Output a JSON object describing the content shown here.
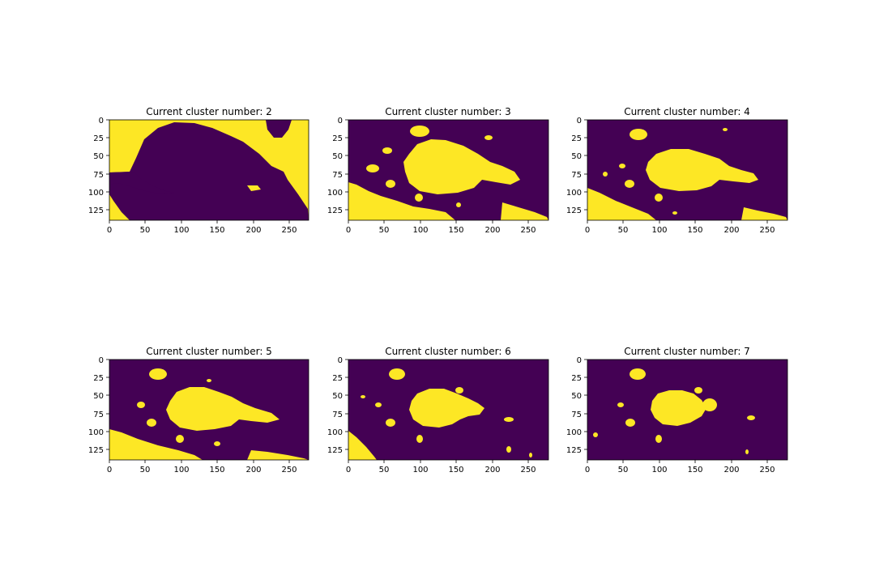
{
  "colors": {
    "background": "#440154",
    "foreground": "#fde725",
    "axis": "#000000"
  },
  "chart_data": [
    {
      "type": "heatmap",
      "title": "Current cluster number: 2",
      "xlim": [
        0,
        278
      ],
      "ylim": [
        139,
        0
      ],
      "xticks": [
        "0",
        "50",
        "100",
        "150",
        "200",
        "250"
      ],
      "yticks": [
        "0",
        "25",
        "50",
        "75",
        "100",
        "125"
      ],
      "grid": false
    },
    {
      "type": "heatmap",
      "title": "Current cluster number: 3",
      "xlim": [
        0,
        278
      ],
      "ylim": [
        139,
        0
      ],
      "xticks": [
        "0",
        "50",
        "100",
        "150",
        "200",
        "250"
      ],
      "yticks": [
        "0",
        "25",
        "50",
        "75",
        "100",
        "125"
      ],
      "grid": false
    },
    {
      "type": "heatmap",
      "title": "Current cluster number: 4",
      "xlim": [
        0,
        278
      ],
      "ylim": [
        139,
        0
      ],
      "xticks": [
        "0",
        "50",
        "100",
        "150",
        "200",
        "250"
      ],
      "yticks": [
        "0",
        "25",
        "50",
        "75",
        "100",
        "125"
      ],
      "grid": false
    },
    {
      "type": "heatmap",
      "title": "Current cluster number: 5",
      "xlim": [
        0,
        278
      ],
      "ylim": [
        139,
        0
      ],
      "xticks": [
        "0",
        "50",
        "100",
        "150",
        "200",
        "250"
      ],
      "yticks": [
        "0",
        "25",
        "50",
        "75",
        "100",
        "125"
      ],
      "grid": false
    },
    {
      "type": "heatmap",
      "title": "Current cluster number: 6",
      "xlim": [
        0,
        278
      ],
      "ylim": [
        139,
        0
      ],
      "xticks": [
        "0",
        "50",
        "100",
        "150",
        "200",
        "250"
      ],
      "yticks": [
        "0",
        "25",
        "50",
        "75",
        "100",
        "125"
      ],
      "grid": false
    },
    {
      "type": "heatmap",
      "title": "Current cluster number: 7",
      "xlim": [
        0,
        278
      ],
      "ylim": [
        139,
        0
      ],
      "xticks": [
        "0",
        "50",
        "100",
        "150",
        "200",
        "250"
      ],
      "yticks": [
        "0",
        "25",
        "50",
        "75",
        "100",
        "125"
      ],
      "grid": false
    }
  ]
}
